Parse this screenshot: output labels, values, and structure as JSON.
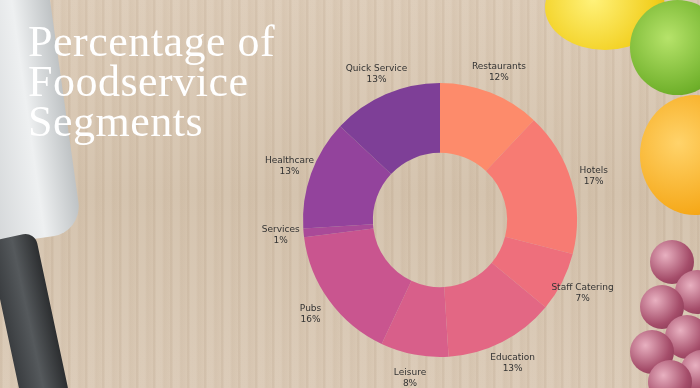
{
  "chart_data": {
    "type": "doughnut",
    "title": "Percentage of Foodservice Segments",
    "categories": [
      "Restaurants",
      "Hotels",
      "Staff Catering",
      "Education",
      "Leisure",
      "Pubs",
      "Services",
      "Healthcare",
      "Quick Service"
    ],
    "values": [
      12,
      17,
      7,
      13,
      8,
      16,
      1,
      13,
      13
    ],
    "value_labels": [
      "12%",
      "17%",
      "7%",
      "13%",
      "8%",
      "16%",
      "1%",
      "13%",
      "13%"
    ],
    "colors": [
      "#fd8b6b",
      "#f77b73",
      "#ee6f7c",
      "#e36784",
      "#d85f8a",
      "#c9558f",
      "#a94a98",
      "#93439c",
      "#7e3f97"
    ],
    "data_labels": true
  }
}
